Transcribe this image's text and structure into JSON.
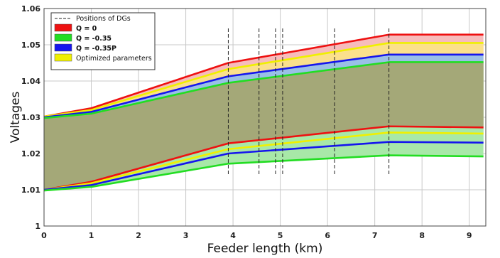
{
  "chart_data": {
    "type": "area",
    "title": "",
    "xlabel": "Feeder length (km)",
    "ylabel": "Voltages",
    "xlim": [
      0,
      9.35
    ],
    "ylim": [
      1.0,
      1.06
    ],
    "x_ticks": [
      "0",
      "1",
      "2",
      "3",
      "4",
      "5",
      "6",
      "7",
      "8",
      "9"
    ],
    "y_ticks": [
      "1",
      "1.01",
      "1.02",
      "1.03",
      "1.04",
      "1.05",
      "1.06"
    ],
    "y_tick_values": [
      1.0,
      1.01,
      1.02,
      1.03,
      1.04,
      1.05,
      1.06
    ],
    "grid": true,
    "legend_position": "top-left",
    "x": [
      0,
      1,
      3.9,
      7.3,
      9.3
    ],
    "series": [
      {
        "name": "Q = 0",
        "color": "#ee1111",
        "fill": "#f7bcbc",
        "upper": [
          1.0302,
          1.0325,
          1.045,
          1.0528,
          1.0528
        ],
        "lower": [
          1.01,
          1.0122,
          1.0228,
          1.0275,
          1.0272
        ]
      },
      {
        "name": "Optimized parameters",
        "color": "#f0f000",
        "fill": "#fbe08c",
        "upper": [
          1.0302,
          1.032,
          1.0433,
          1.0505,
          1.0505
        ],
        "lower": [
          1.01,
          1.0118,
          1.0212,
          1.0258,
          1.0255
        ]
      },
      {
        "name": "Q = -0.35P",
        "color": "#1515ee",
        "fill": "#9ac0e6",
        "upper": [
          1.03,
          1.0315,
          1.0413,
          1.0473,
          1.0473
        ],
        "lower": [
          1.01,
          1.0113,
          1.02,
          1.0232,
          1.023
        ]
      },
      {
        "name": "Q = -0.35",
        "color": "#22dd22",
        "fill": "#a8e8a8",
        "upper": [
          1.0298,
          1.031,
          1.0395,
          1.0452,
          1.0452
        ],
        "lower": [
          1.0098,
          1.0108,
          1.0172,
          1.0195,
          1.0192
        ]
      }
    ],
    "overlap_fill": "#a4a878",
    "dg_positions": [
      3.9,
      4.55,
      4.9,
      5.05,
      6.15,
      7.3
    ],
    "dg_legend": "Positions of DGs",
    "legend_order": [
      "Q = 0",
      "Q = -0.35",
      "Q = -0.35P",
      "Optimized parameters"
    ]
  }
}
